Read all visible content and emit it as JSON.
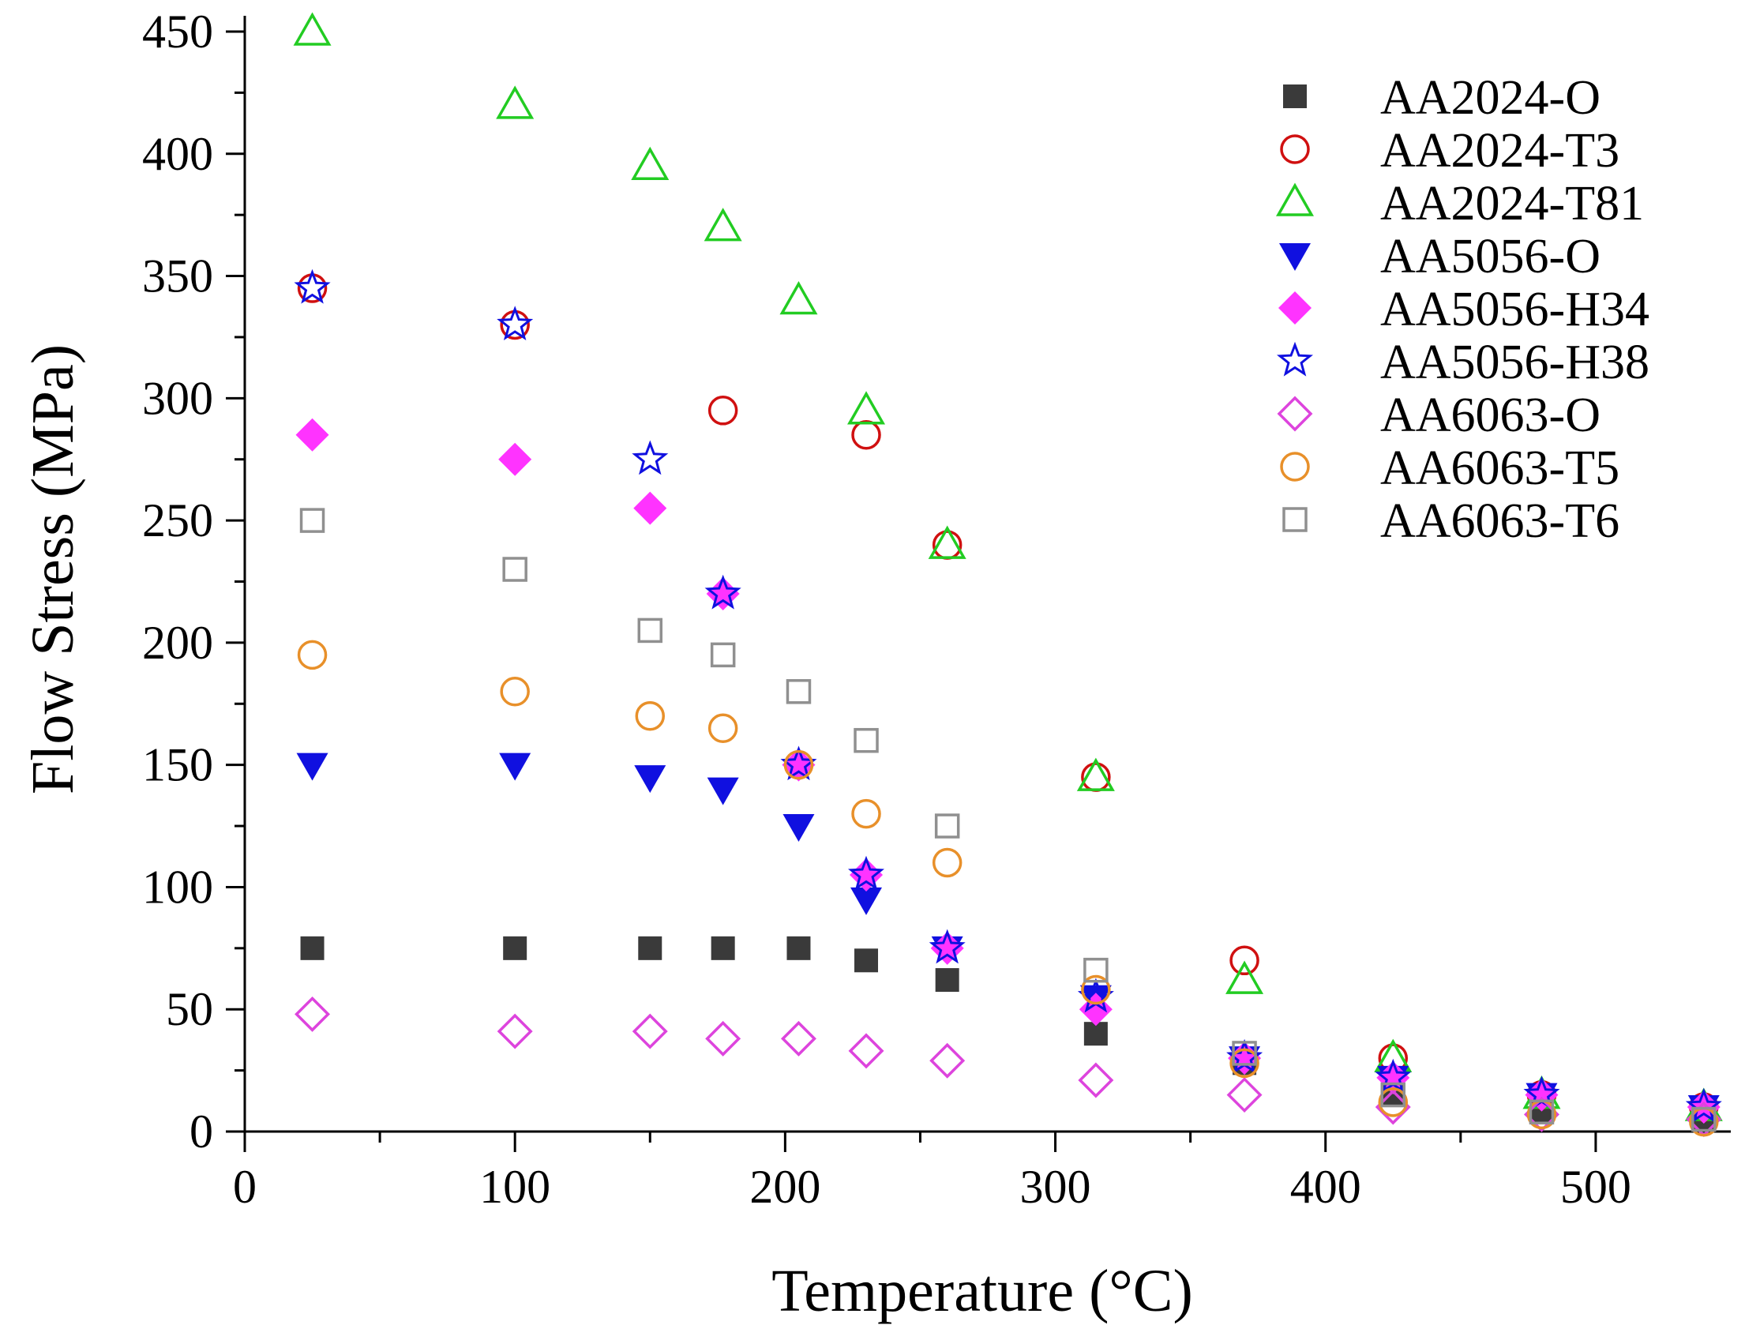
{
  "chart_data": {
    "type": "scatter",
    "title": "",
    "xlabel": "Temperature (°C)",
    "ylabel": "Flow Stress (MPa)",
    "xlim": [
      0,
      550
    ],
    "ylim": [
      0,
      450
    ],
    "xticks": [
      0,
      100,
      200,
      300,
      400,
      500
    ],
    "yticks": [
      0,
      50,
      100,
      150,
      200,
      250,
      300,
      350,
      400,
      450
    ],
    "grid": false,
    "legend_position": "top-right",
    "series": [
      {
        "name": "AA2024-O",
        "marker": "square-filled",
        "color": "#3a3a3a",
        "x": [
          25,
          100,
          150,
          177,
          205,
          230,
          260,
          315,
          370,
          425,
          480,
          540
        ],
        "y": [
          75,
          75,
          75,
          75,
          75,
          70,
          62,
          40,
          28,
          15,
          8,
          5
        ]
      },
      {
        "name": "AA2024-T3",
        "marker": "circle-open",
        "color": "#d01010",
        "x": [
          25,
          100,
          177,
          230,
          260,
          315,
          370,
          425,
          480,
          540
        ],
        "y": [
          345,
          330,
          295,
          285,
          240,
          145,
          70,
          30,
          15,
          10
        ]
      },
      {
        "name": "AA2024-T81",
        "marker": "triangle-up-open",
        "color": "#22cc22",
        "x": [
          25,
          100,
          150,
          177,
          205,
          230,
          260,
          315,
          370,
          425,
          480,
          540
        ],
        "y": [
          450,
          420,
          395,
          370,
          340,
          295,
          240,
          145,
          62,
          30,
          15,
          10
        ]
      },
      {
        "name": "AA5056-O",
        "marker": "triangle-down-filled",
        "color": "#1010e0",
        "x": [
          25,
          100,
          150,
          177,
          205,
          230,
          260,
          315,
          370,
          425,
          480,
          540
        ],
        "y": [
          150,
          150,
          145,
          140,
          125,
          95,
          75,
          55,
          30,
          22,
          15,
          10
        ]
      },
      {
        "name": "AA5056-H34",
        "marker": "diamond-filled",
        "color": "#ff33ff",
        "x": [
          25,
          100,
          150,
          177,
          205,
          230,
          260,
          315,
          370,
          425,
          480,
          540
        ],
        "y": [
          285,
          275,
          255,
          220,
          150,
          105,
          75,
          50,
          30,
          22,
          15,
          10
        ]
      },
      {
        "name": "AA5056-H38",
        "marker": "star-open",
        "color": "#1010e0",
        "x": [
          25,
          100,
          150,
          177,
          205,
          230,
          260,
          315,
          370,
          425,
          480,
          540
        ],
        "y": [
          345,
          330,
          275,
          220,
          150,
          105,
          75,
          55,
          30,
          22,
          15,
          10
        ]
      },
      {
        "name": "AA6063-O",
        "marker": "diamond-open",
        "color": "#dd44dd",
        "x": [
          25,
          100,
          150,
          177,
          205,
          230,
          260,
          315,
          370,
          425,
          480,
          540
        ],
        "y": [
          48,
          41,
          41,
          38,
          38,
          33,
          29,
          21,
          15,
          10,
          7,
          5
        ]
      },
      {
        "name": "AA6063-T5",
        "marker": "circle-open",
        "color": "#e8902a",
        "x": [
          25,
          100,
          150,
          177,
          205,
          230,
          260,
          315,
          370,
          425,
          480,
          540
        ],
        "y": [
          195,
          180,
          170,
          165,
          150,
          130,
          110,
          58,
          28,
          12,
          7,
          4
        ]
      },
      {
        "name": "AA6063-T6",
        "marker": "square-open",
        "color": "#909090",
        "x": [
          25,
          100,
          150,
          177,
          205,
          230,
          260,
          315,
          370,
          425,
          480,
          540
        ],
        "y": [
          250,
          230,
          205,
          195,
          180,
          160,
          125,
          66,
          32,
          15,
          8,
          5
        ]
      }
    ]
  }
}
